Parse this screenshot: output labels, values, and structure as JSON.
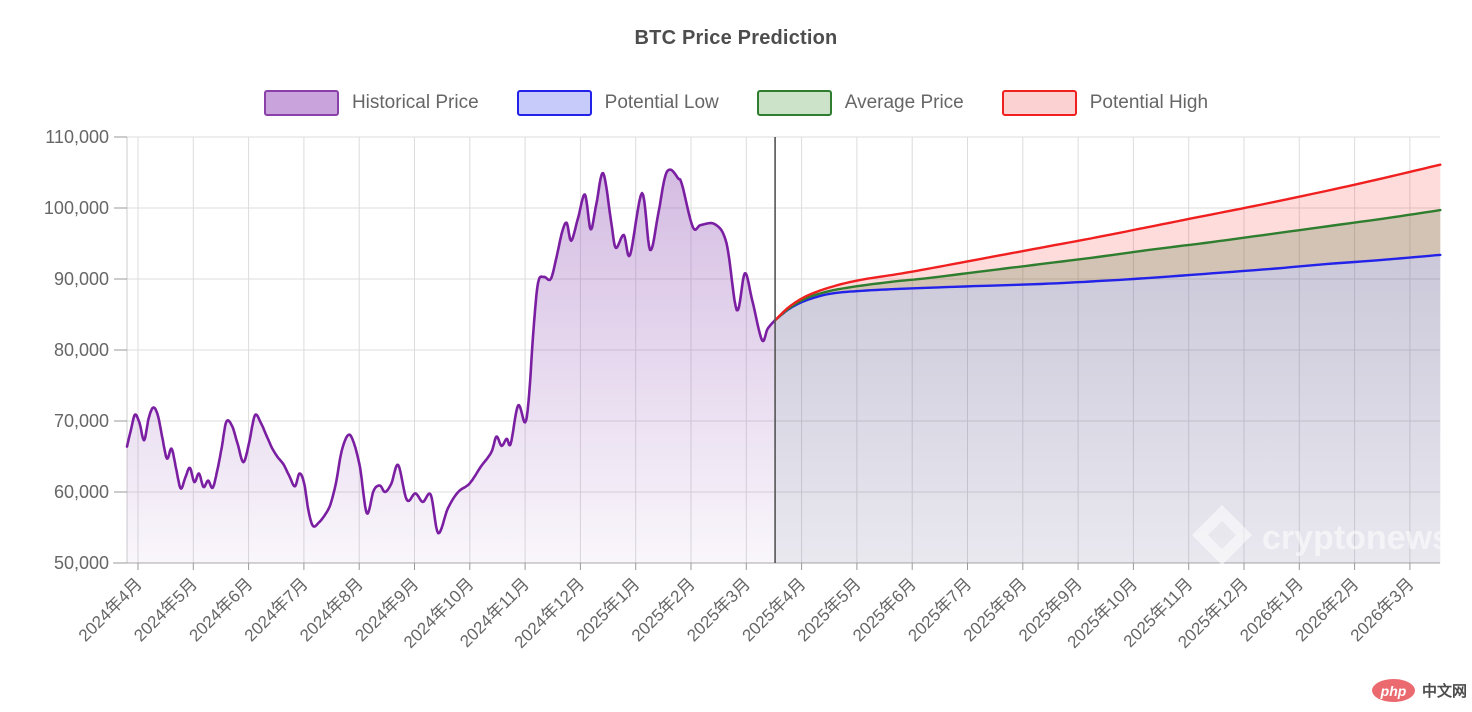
{
  "title": "BTC Price Prediction",
  "watermark": "cryptonews",
  "logo": {
    "badge": "php",
    "text": "中文网"
  },
  "legend": [
    {
      "label": "Historical Price",
      "fill": "#c9a3dc",
      "border": "#8b3fa8"
    },
    {
      "label": "Potential Low",
      "fill": "#c6cbfa",
      "border": "#2222e8"
    },
    {
      "label": "Average Price",
      "fill": "#cde3c9",
      "border": "#2f7e2f"
    },
    {
      "label": "Potential High",
      "fill": "#fcd1d1",
      "border": "#f02020"
    }
  ],
  "chart_data": {
    "type": "area",
    "title": "BTC Price Prediction",
    "xlabel": "",
    "ylabel": "",
    "ylim": [
      50000,
      110000
    ],
    "grid": true,
    "legend_position": "top",
    "x_unit": "months since 2024-04 (0 = 2024年4月, one unit per month)",
    "x_labels": [
      "2024年4月",
      "2024年5月",
      "2024年6月",
      "2024年7月",
      "2024年8月",
      "2024年9月",
      "2024年10月",
      "2024年11月",
      "2024年12月",
      "2025年1月",
      "2025年2月",
      "2025年3月",
      "2025年4月",
      "2025年5月",
      "2025年6月",
      "2025年7月",
      "2025年8月",
      "2025年9月",
      "2025年10月",
      "2025年11月",
      "2025年12月",
      "2026年1月",
      "2026年2月",
      "2026年3月"
    ],
    "y_ticks": [
      {
        "value": 110000,
        "label": "110,000"
      },
      {
        "value": 100000,
        "label": "100,000"
      },
      {
        "value": 90000,
        "label": "90,000"
      },
      {
        "value": 80000,
        "label": "80,000"
      },
      {
        "value": 70000,
        "label": "70,000"
      },
      {
        "value": 60000,
        "label": "60,000"
      },
      {
        "value": 50000,
        "label": "50,000"
      }
    ],
    "separator_m": 11.35,
    "series": [
      {
        "name": "Historical Price",
        "color": "#7b1fa2",
        "points": [
          [
            0.0,
            66400
          ],
          [
            0.07,
            68800
          ],
          [
            0.14,
            70900
          ],
          [
            0.22,
            69700
          ],
          [
            0.3,
            67300
          ],
          [
            0.38,
            70400
          ],
          [
            0.46,
            71900
          ],
          [
            0.54,
            70800
          ],
          [
            0.62,
            67600
          ],
          [
            0.7,
            64700
          ],
          [
            0.78,
            66100
          ],
          [
            0.86,
            63300
          ],
          [
            0.94,
            60500
          ],
          [
            1.02,
            62000
          ],
          [
            1.1,
            63400
          ],
          [
            1.18,
            61400
          ],
          [
            1.26,
            62600
          ],
          [
            1.34,
            60700
          ],
          [
            1.42,
            61600
          ],
          [
            1.5,
            60600
          ],
          [
            1.58,
            63000
          ],
          [
            1.66,
            66300
          ],
          [
            1.74,
            69900
          ],
          [
            1.84,
            69300
          ],
          [
            1.94,
            66700
          ],
          [
            2.04,
            64200
          ],
          [
            2.14,
            67000
          ],
          [
            2.24,
            70800
          ],
          [
            2.34,
            69800
          ],
          [
            2.44,
            68000
          ],
          [
            2.54,
            66200
          ],
          [
            2.64,
            64900
          ],
          [
            2.74,
            63900
          ],
          [
            2.84,
            62300
          ],
          [
            2.94,
            60800
          ],
          [
            3.02,
            62600
          ],
          [
            3.1,
            61300
          ],
          [
            3.18,
            57300
          ],
          [
            3.26,
            55200
          ],
          [
            3.36,
            55700
          ],
          [
            3.46,
            56700
          ],
          [
            3.56,
            58200
          ],
          [
            3.66,
            61300
          ],
          [
            3.76,
            65800
          ],
          [
            3.87,
            68000
          ],
          [
            3.96,
            67200
          ],
          [
            4.08,
            63500
          ],
          [
            4.2,
            57000
          ],
          [
            4.32,
            60200
          ],
          [
            4.43,
            60900
          ],
          [
            4.52,
            60000
          ],
          [
            4.63,
            61200
          ],
          [
            4.75,
            63800
          ],
          [
            4.9,
            58900
          ],
          [
            5.05,
            59800
          ],
          [
            5.18,
            58600
          ],
          [
            5.32,
            59600
          ],
          [
            5.45,
            54200
          ],
          [
            5.62,
            57700
          ],
          [
            5.8,
            60000
          ],
          [
            6.0,
            61200
          ],
          [
            6.2,
            63600
          ],
          [
            6.38,
            65600
          ],
          [
            6.47,
            67800
          ],
          [
            6.56,
            66500
          ],
          [
            6.65,
            67500
          ],
          [
            6.72,
            66800
          ],
          [
            6.85,
            72200
          ],
          [
            6.97,
            69800
          ],
          [
            7.04,
            73500
          ],
          [
            7.12,
            83000
          ],
          [
            7.2,
            89500
          ],
          [
            7.3,
            90300
          ],
          [
            7.42,
            90000
          ],
          [
            7.52,
            93000
          ],
          [
            7.62,
            96600
          ],
          [
            7.7,
            97900
          ],
          [
            7.78,
            95400
          ],
          [
            7.9,
            98600
          ],
          [
            8.02,
            101900
          ],
          [
            8.12,
            97000
          ],
          [
            8.22,
            100600
          ],
          [
            8.34,
            104900
          ],
          [
            8.48,
            98000
          ],
          [
            8.56,
            94400
          ],
          [
            8.7,
            96200
          ],
          [
            8.81,
            93400
          ],
          [
            9.02,
            102100
          ],
          [
            9.16,
            94100
          ],
          [
            9.3,
            99000
          ],
          [
            9.42,
            104300
          ],
          [
            9.52,
            105400
          ],
          [
            9.65,
            104200
          ],
          [
            9.72,
            103300
          ],
          [
            9.91,
            97300
          ],
          [
            10.05,
            97600
          ],
          [
            10.3,
            97700
          ],
          [
            10.5,
            95000
          ],
          [
            10.68,
            85600
          ],
          [
            10.82,
            90800
          ],
          [
            10.95,
            87000
          ],
          [
            11.12,
            81400
          ],
          [
            11.22,
            83000
          ],
          [
            11.35,
            84200
          ]
        ]
      },
      {
        "name": "Potential Low",
        "color": "#2222e8",
        "points": [
          [
            11.35,
            84200
          ],
          [
            11.6,
            85800
          ],
          [
            11.9,
            87000
          ],
          [
            12.3,
            87900
          ],
          [
            12.8,
            88300
          ],
          [
            13.5,
            88600
          ],
          [
            14.5,
            88900
          ],
          [
            16,
            89300
          ],
          [
            17,
            89700
          ],
          [
            18,
            90200
          ],
          [
            19,
            90800
          ],
          [
            20,
            91400
          ],
          [
            21,
            92100
          ],
          [
            22,
            92700
          ],
          [
            23,
            93400
          ]
        ]
      },
      {
        "name": "Average Price",
        "color": "#2f7e2f",
        "points": [
          [
            11.35,
            84200
          ],
          [
            11.6,
            85900
          ],
          [
            11.9,
            87300
          ],
          [
            12.3,
            88300
          ],
          [
            12.8,
            89000
          ],
          [
            13.5,
            89700
          ],
          [
            14,
            90100
          ],
          [
            15,
            91100
          ],
          [
            16,
            92100
          ],
          [
            17,
            93100
          ],
          [
            18,
            94200
          ],
          [
            19,
            95200
          ],
          [
            20,
            96300
          ],
          [
            21,
            97400
          ],
          [
            22,
            98500
          ],
          [
            23,
            99700
          ]
        ]
      },
      {
        "name": "Potential High",
        "color": "#f02020",
        "points": [
          [
            11.35,
            84200
          ],
          [
            11.6,
            86100
          ],
          [
            11.9,
            87600
          ],
          [
            12.3,
            88800
          ],
          [
            12.8,
            89800
          ],
          [
            13.5,
            90700
          ],
          [
            14,
            91400
          ],
          [
            15,
            92900
          ],
          [
            16,
            94400
          ],
          [
            17,
            95900
          ],
          [
            18,
            97500
          ],
          [
            19,
            99100
          ],
          [
            20,
            100700
          ],
          [
            21,
            102400
          ],
          [
            22,
            104200
          ],
          [
            23,
            106100
          ]
        ]
      }
    ]
  }
}
